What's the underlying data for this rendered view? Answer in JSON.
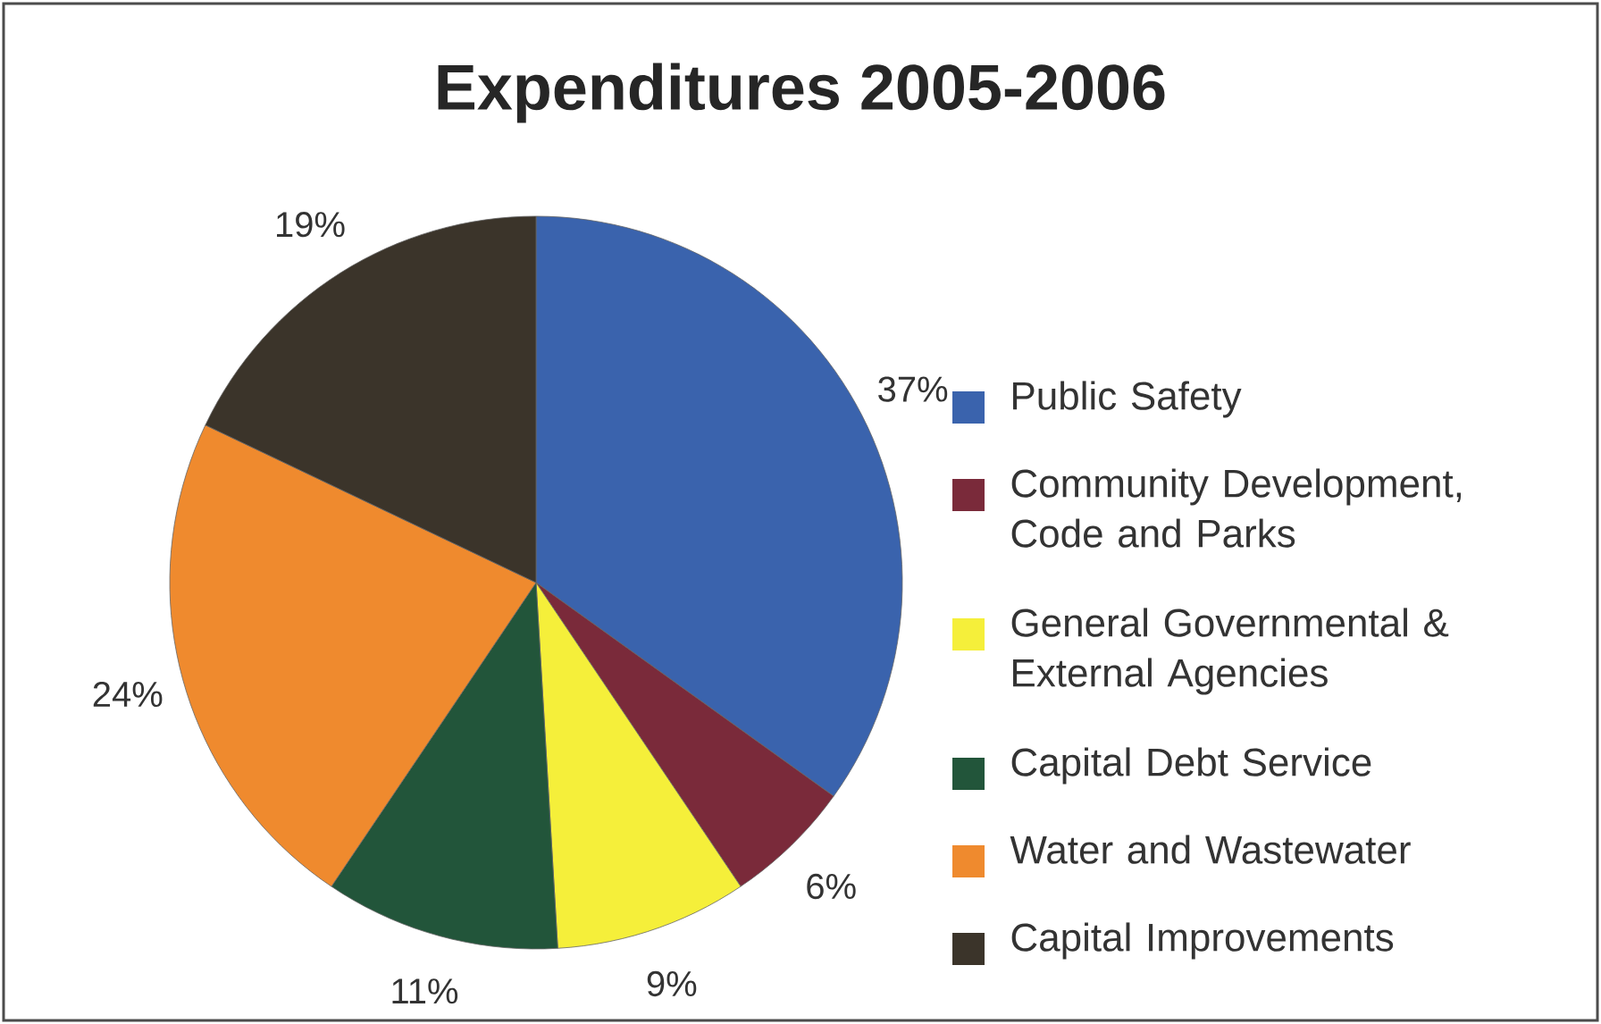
{
  "chart_data": {
    "type": "pie",
    "title": "Expenditures 2005-2006",
    "categories": [
      "Public Safety",
      "Community Development, Code and Parks",
      "General Governmental & External Agencies",
      "Capital Debt Service",
      "Water and Wastewater",
      "Capital Improvements"
    ],
    "values": [
      37,
      6,
      9,
      11,
      24,
      19
    ],
    "colors": [
      "#3a63ad",
      "#7a2a3a",
      "#f5ef3a",
      "#22553a",
      "#ef8a2e",
      "#3b342a"
    ],
    "value_labels": [
      "37%",
      "6%",
      "9%",
      "11%",
      "24%",
      "19%"
    ],
    "legend": "right"
  }
}
